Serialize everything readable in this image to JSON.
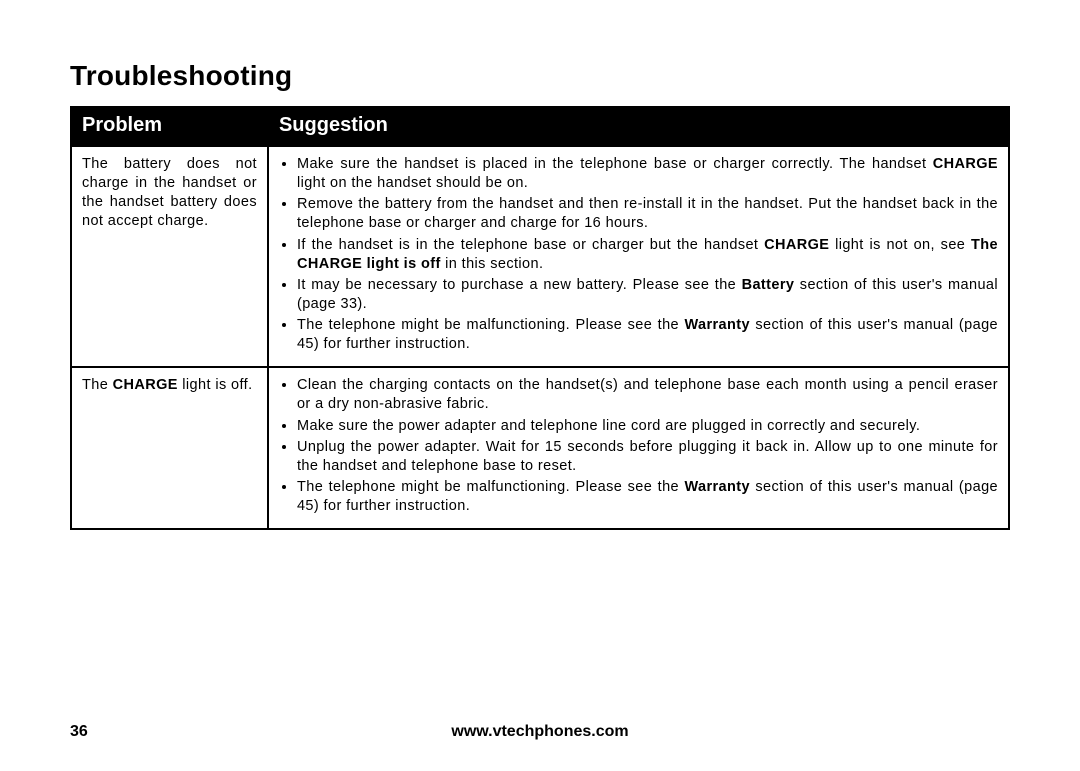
{
  "page": {
    "section_title": "Troubleshooting",
    "page_number": "36",
    "footer_url": "www.vtechphones.com"
  },
  "table": {
    "header": {
      "problem": "Problem",
      "suggestion": "Suggestion"
    },
    "col_widths_pct": [
      21,
      79
    ],
    "border_color": "#000000",
    "header_bg": "#000000",
    "header_fg": "#ffffff",
    "body_fontsize_pt": 11,
    "header_fontsize_pt": 15,
    "title_fontsize_pt": 21,
    "rows": [
      {
        "problem_segments": [
          {
            "t": "The battery does not charge in the handset or the handset battery does not accept charge.",
            "b": false
          }
        ],
        "suggestions": [
          [
            {
              "t": "Make sure the handset is placed in the telephone base or charger correctly. The handset ",
              "b": false
            },
            {
              "t": "CHARGE",
              "b": true
            },
            {
              "t": " light on the handset should be on.",
              "b": false
            }
          ],
          [
            {
              "t": "Remove the battery from the handset and then re-install it in the handset. Put the handset back in the telephone base or charger and charge for 16 hours.",
              "b": false
            }
          ],
          [
            {
              "t": "If the handset is in the telephone base or charger but the handset ",
              "b": false
            },
            {
              "t": "CHARGE",
              "b": true
            },
            {
              "t": " light is not on, see ",
              "b": false
            },
            {
              "t": "The CHARGE light is off",
              "b": true
            },
            {
              "t": " in this section.",
              "b": false
            }
          ],
          [
            {
              "t": "It may be necessary to purchase a new battery. Please see the ",
              "b": false
            },
            {
              "t": "Battery",
              "b": true
            },
            {
              "t": " section of this user's manual (page 33).",
              "b": false
            }
          ],
          [
            {
              "t": "The telephone might be malfunctioning. Please see the ",
              "b": false
            },
            {
              "t": "Warranty",
              "b": true
            },
            {
              "t": " section of this user's manual (page 45) for further instruction.",
              "b": false
            }
          ]
        ]
      },
      {
        "problem_segments": [
          {
            "t": "The ",
            "b": false
          },
          {
            "t": "CHARGE",
            "b": true
          },
          {
            "t": " light is off.",
            "b": false
          }
        ],
        "suggestions": [
          [
            {
              "t": "Clean the charging contacts on the handset(s) and telephone base each month using a pencil eraser or a dry non-abrasive fabric.",
              "b": false
            }
          ],
          [
            {
              "t": "Make sure the power adapter and telephone line cord are plugged in correctly and securely.",
              "b": false
            }
          ],
          [
            {
              "t": "Unplug the power adapter. Wait for 15 seconds before plugging it back in. Allow up to one minute for the handset and telephone base to reset.",
              "b": false
            }
          ],
          [
            {
              "t": "The telephone might be malfunctioning. Please see the ",
              "b": false
            },
            {
              "t": "Warranty",
              "b": true
            },
            {
              "t": " section of this user's manual (page 45) for further instruction.",
              "b": false
            }
          ]
        ]
      }
    ]
  }
}
